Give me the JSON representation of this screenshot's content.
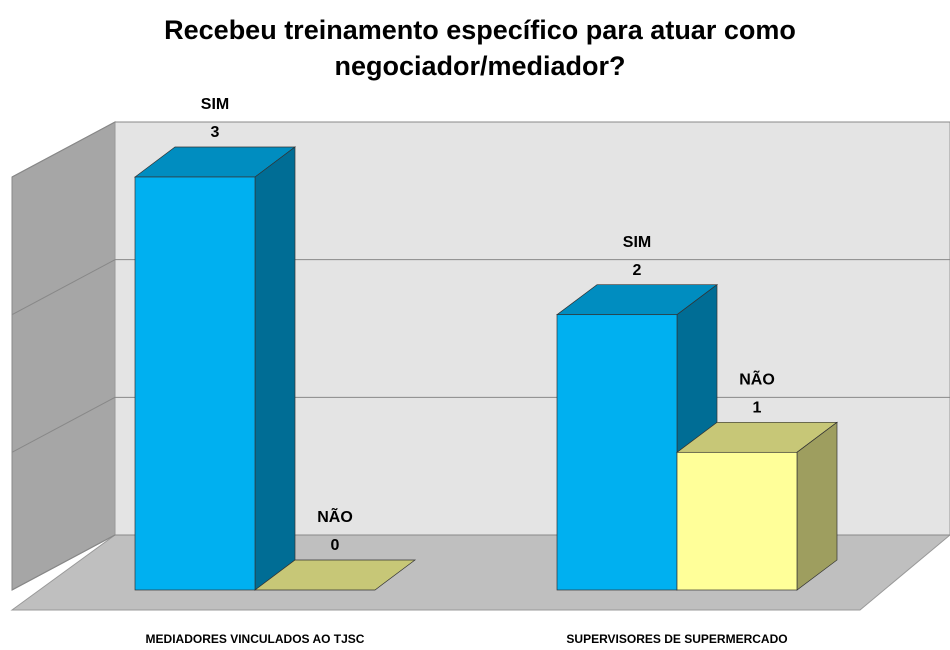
{
  "chart_data": {
    "type": "bar3d",
    "title": "Recebeu treinamento específico para atuar como negociador/mediador?",
    "categories": [
      "MEDIADORES VINCULADOS AO TJSC",
      "SUPERVISORES DE SUPERMERCADO"
    ],
    "series": [
      {
        "name": "SIM",
        "color": "#00b0f0",
        "values": [
          3,
          2
        ]
      },
      {
        "name": "NÃO",
        "color": "#ffff99",
        "values": [
          0,
          1
        ]
      }
    ],
    "ylim": [
      0,
      3
    ],
    "yticks": [
      0,
      1,
      2,
      3
    ],
    "grid": true
  }
}
